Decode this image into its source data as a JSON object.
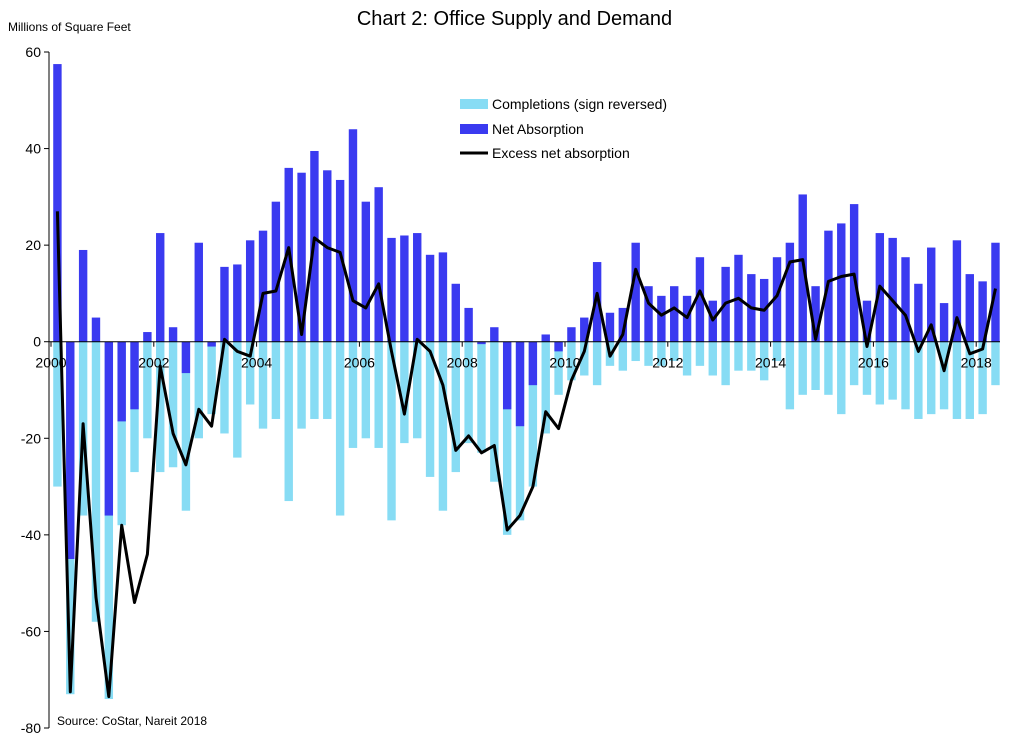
{
  "title": "Chart 2: Office Supply and Demand",
  "y_unit_label": "Millions of Square Feet",
  "source": "Source: CoStar, Nareit 2018",
  "colors": {
    "completions": "#87dcf4",
    "net_absorption": "#3a3af0",
    "excess": "#000000"
  },
  "chart_data": {
    "type": "bar",
    "title": "Chart 2: Office Supply and Demand",
    "ylabel": "Millions of Square Feet",
    "xlabel": "",
    "ylim": [
      -80,
      60
    ],
    "y_ticks": [
      60,
      40,
      20,
      0,
      -20,
      -40,
      -60,
      -80
    ],
    "x_ticks": [
      "2000",
      "2002",
      "2004",
      "2006",
      "2008",
      "2010",
      "2012",
      "2014",
      "2016",
      "2018"
    ],
    "x_start_year": 2000,
    "legend_position": "top-center",
    "grid": false,
    "series": [
      {
        "name": "Completions (sign reversed)",
        "type": "bar",
        "values": [
          -30,
          -73,
          -36,
          -58,
          -74,
          -38,
          -27,
          -20,
          -27,
          -26,
          -35,
          -20,
          -15,
          -19,
          -24,
          -13,
          -18,
          -16,
          -33,
          -18,
          -16,
          -16,
          -36,
          -22,
          -20,
          -22,
          -37,
          -21,
          -20,
          -28,
          -35,
          -27,
          -21,
          -23,
          -29,
          -40,
          -37,
          -30,
          -19,
          -11,
          -8,
          -7,
          -9,
          -5,
          -6,
          -4,
          -5,
          -5,
          -4,
          -7,
          -5,
          -7,
          -9,
          -6,
          -6,
          -8,
          -4,
          -14,
          -11,
          -10,
          -11,
          -15,
          -9,
          -11,
          -13,
          -12,
          -14,
          -16,
          -15,
          -14,
          -16,
          -16,
          -15,
          -9
        ]
      },
      {
        "name": "Net Absorption",
        "type": "bar",
        "values": [
          57.5,
          -45,
          19,
          5,
          -36,
          -16.5,
          -14,
          2,
          22.5,
          3,
          -6.5,
          20.5,
          -1,
          15.5,
          16,
          21,
          23,
          29,
          36,
          35,
          39.5,
          35.5,
          33.5,
          44,
          29,
          32,
          21.5,
          22,
          22.5,
          18,
          18.5,
          12,
          7,
          -0.5,
          3,
          -14,
          -17.5,
          -9,
          1.5,
          -2,
          3,
          5,
          16.5,
          6,
          7,
          20.5,
          11.5,
          9.5,
          11.5,
          9.5,
          17.5,
          8.5,
          15.5,
          18,
          14,
          13,
          17.5,
          20.5,
          30.5,
          11.5,
          23,
          24.5,
          28.5,
          8.5,
          22.5,
          21.5,
          17.5,
          12,
          19.5,
          8,
          21,
          14,
          12.5,
          20.5
        ]
      },
      {
        "name": "Excess net absorption",
        "type": "line",
        "values": [
          27,
          -72.5,
          -17,
          -53,
          -73.5,
          -38,
          -54,
          -44,
          -5,
          -19,
          -25.5,
          -14,
          -17.5,
          0.5,
          -2,
          -3,
          10,
          10.5,
          19.5,
          1.5,
          21.5,
          19.5,
          18.5,
          8.5,
          7,
          12,
          -2,
          -15,
          0.5,
          -2,
          -9,
          -22.5,
          -19.5,
          -23,
          -21.5,
          -39,
          -36,
          -30,
          -14.5,
          -18,
          -8,
          -2,
          10,
          -3,
          1.5,
          15,
          8,
          5.5,
          7,
          5,
          10.5,
          4.5,
          8,
          9,
          7,
          6.5,
          9.5,
          16.5,
          17,
          0.5,
          12.5,
          13.5,
          14,
          -1,
          11.5,
          8.5,
          5.5,
          -2,
          3.5,
          -6,
          5,
          -2.5,
          -1.5,
          11
        ]
      }
    ]
  }
}
